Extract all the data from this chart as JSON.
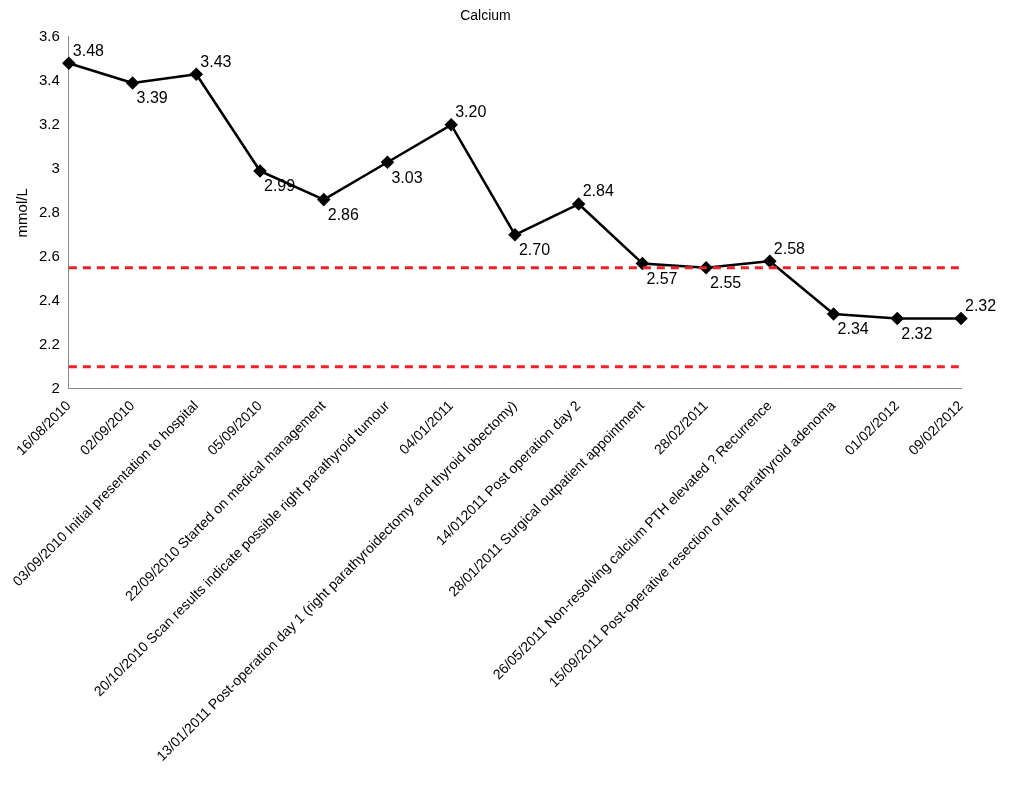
{
  "chart_data": {
    "type": "line",
    "title": "Calcium",
    "ylabel": "mmol/L",
    "categories": [
      "16/08/2010",
      "02/09/2010",
      "03/09/2010 Initial presentation to hospital",
      "05/09/2010",
      "22/09/2010 Started on medical management",
      "20/10/2010 Scan results indicate possible right parathyroid tumour",
      "04/01/2011",
      "13/01/2011 Post-operation day 1 (right parathyroidectomy and thyroid lobectomy)",
      "14/012011 Post operation day 2",
      "28/01/2011 Surgical outpatient appointment",
      "28/02/2011",
      "26/05/2011 Non-resolving calcium PTH elevated ? Recurrence",
      "15/09/2011 Post-operative resection of left parathyroid adenoma",
      "01/02/2012",
      "09/02/2012"
    ],
    "series": [
      {
        "color": "#000000",
        "values": [
          3.48,
          3.39,
          3.43,
          2.99,
          2.86,
          3.03,
          3.2,
          2.7,
          2.84,
          2.57,
          2.55,
          2.58,
          2.34,
          2.32,
          2.32
        ],
        "value_labels": [
          "3.48",
          "3.39",
          "3.43",
          "2.99",
          "2.86",
          "3.03",
          "3.20",
          "2.70",
          "2.84",
          "2.57",
          "2.55",
          "2.58",
          "2.34",
          "2.32",
          "2.32"
        ]
      }
    ],
    "ylim": [
      2,
      3.6
    ],
    "yticks": [
      2,
      2.2,
      2.4,
      2.6,
      2.8,
      3,
      3.2,
      3.4,
      3.6
    ],
    "ref_lines": [
      {
        "axis": "y",
        "value": 2.55,
        "color": "#e8232a",
        "line_style": "dashed"
      },
      {
        "axis": "y",
        "value": 2.1,
        "color": "#e8232a",
        "line_style": "dashed"
      }
    ],
    "grid": false,
    "legend": false,
    "marker": "diamond",
    "line_style": "solid"
  }
}
